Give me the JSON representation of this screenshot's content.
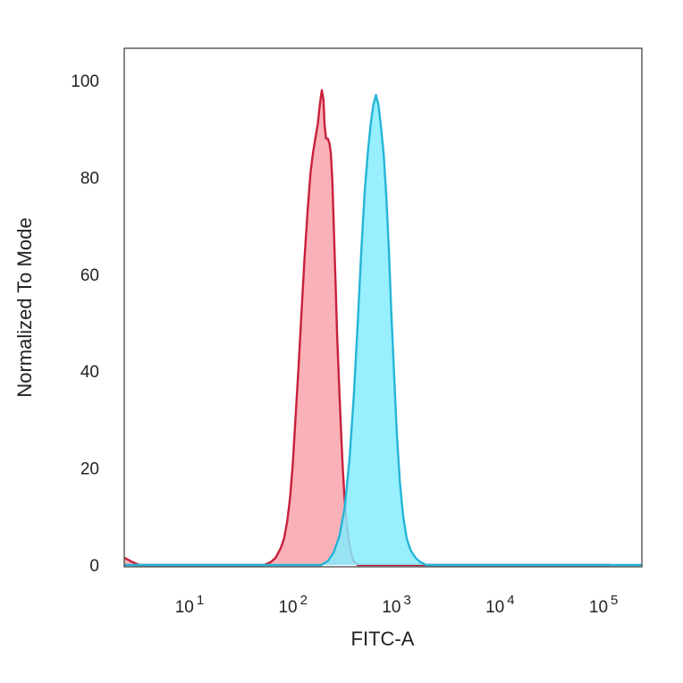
{
  "chart_data": {
    "type": "area",
    "title": "",
    "xlabel": "FITC-A",
    "ylabel": "Normalized To Mode",
    "x_scale": "log",
    "xlim": [
      2,
      200000
    ],
    "ylim": [
      0,
      100
    ],
    "x_ticks": [
      {
        "value": 10,
        "base": "10",
        "exp": "1"
      },
      {
        "value": 100,
        "base": "10",
        "exp": "2"
      },
      {
        "value": 1000,
        "base": "10",
        "exp": "3"
      },
      {
        "value": 10000,
        "base": "10",
        "exp": "4"
      },
      {
        "value": 100000,
        "base": "10",
        "exp": "5"
      }
    ],
    "y_ticks": [
      {
        "value": 0,
        "label": "0"
      },
      {
        "value": 20,
        "label": "20"
      },
      {
        "value": 40,
        "label": "40"
      },
      {
        "value": 60,
        "label": "60"
      },
      {
        "value": 80,
        "label": "80"
      },
      {
        "value": 100,
        "label": "100"
      }
    ],
    "grid": false,
    "series": [
      {
        "fill": "#f9a3ac",
        "stroke": "#c8203a",
        "points": [
          [
            2.0,
            1.5
          ],
          [
            2.4,
            0.6
          ],
          [
            2.8,
            0
          ],
          [
            20,
            0
          ],
          [
            45,
            0
          ],
          [
            52,
            0.6
          ],
          [
            58,
            1.5
          ],
          [
            65,
            3.5
          ],
          [
            70,
            5.5
          ],
          [
            75,
            9
          ],
          [
            80,
            14
          ],
          [
            85,
            21
          ],
          [
            90,
            30
          ],
          [
            96,
            40
          ],
          [
            103,
            52
          ],
          [
            110,
            63
          ],
          [
            118,
            73
          ],
          [
            126,
            81
          ],
          [
            133,
            85
          ],
          [
            140,
            88
          ],
          [
            148,
            91
          ],
          [
            155,
            95
          ],
          [
            162,
            98
          ],
          [
            168,
            96
          ],
          [
            172,
            91
          ],
          [
            178,
            88
          ],
          [
            185,
            88
          ],
          [
            192,
            87
          ],
          [
            198,
            85
          ],
          [
            205,
            79
          ],
          [
            212,
            69
          ],
          [
            220,
            58
          ],
          [
            228,
            47
          ],
          [
            238,
            37
          ],
          [
            248,
            28
          ],
          [
            258,
            20
          ],
          [
            268,
            14
          ],
          [
            280,
            9
          ],
          [
            295,
            5
          ],
          [
            310,
            2.5
          ],
          [
            330,
            0.8
          ],
          [
            360,
            0
          ],
          [
            100000,
            0
          ]
        ]
      },
      {
        "fill": "#86ecfd",
        "stroke": "#25b5d8",
        "points": [
          [
            2.0,
            0
          ],
          [
            160,
            0
          ],
          [
            185,
            0.8
          ],
          [
            210,
            2.5
          ],
          [
            240,
            6
          ],
          [
            270,
            12
          ],
          [
            300,
            22
          ],
          [
            330,
            35
          ],
          [
            360,
            50
          ],
          [
            390,
            65
          ],
          [
            420,
            77
          ],
          [
            450,
            85
          ],
          [
            480,
            91
          ],
          [
            510,
            95
          ],
          [
            540,
            97
          ],
          [
            570,
            95
          ],
          [
            600,
            91
          ],
          [
            640,
            85
          ],
          [
            680,
            76
          ],
          [
            720,
            65
          ],
          [
            760,
            52
          ],
          [
            810,
            39
          ],
          [
            860,
            27
          ],
          [
            920,
            17
          ],
          [
            990,
            10
          ],
          [
            1070,
            5.5
          ],
          [
            1170,
            3
          ],
          [
            1300,
            1.5
          ],
          [
            1450,
            0.6
          ],
          [
            1650,
            0
          ],
          [
            200000,
            0
          ]
        ]
      }
    ]
  }
}
